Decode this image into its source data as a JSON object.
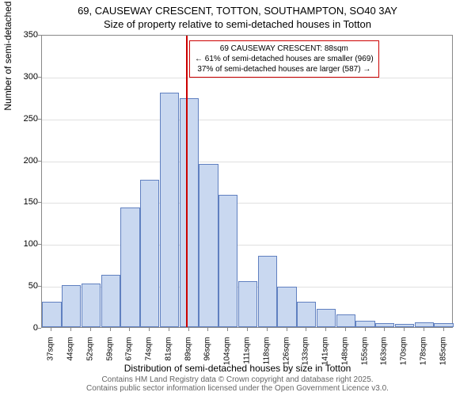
{
  "title_line1": "69, CAUSEWAY CRESCENT, TOTTON, SOUTHAMPTON, SO40 3AY",
  "title_line2": "Size of property relative to semi-detached houses in Totton",
  "y_axis_label": "Number of semi-detached properties",
  "x_axis_label": "Distribution of semi-detached houses by size in Totton",
  "attribution_line1": "Contains HM Land Registry data © Crown copyright and database right 2025.",
  "attribution_line2": "Contains public sector information licensed under the Open Government Licence v3.0.",
  "chart": {
    "type": "histogram",
    "background_color": "#ffffff",
    "grid_color": "#e0e0e0",
    "axis_color": "#888888",
    "bar_fill_color": "#c9d8f0",
    "bar_border_color": "#6080c0",
    "marker_line_color": "#cc0000",
    "callout_border_color": "#cc0000",
    "ylim": [
      0,
      350
    ],
    "y_ticks": [
      0,
      50,
      100,
      150,
      200,
      250,
      300,
      350
    ],
    "x_ticks": [
      "37sqm",
      "44sqm",
      "52sqm",
      "59sqm",
      "67sqm",
      "74sqm",
      "81sqm",
      "89sqm",
      "96sqm",
      "104sqm",
      "111sqm",
      "118sqm",
      "126sqm",
      "133sqm",
      "141sqm",
      "148sqm",
      "155sqm",
      "163sqm",
      "170sqm",
      "178sqm",
      "185sqm"
    ],
    "values": [
      30,
      50,
      52,
      62,
      143,
      176,
      280,
      273,
      195,
      158,
      55,
      85,
      48,
      30,
      22,
      15,
      8,
      5,
      4,
      6,
      5
    ],
    "marker_position": 88,
    "x_range": [
      33.5,
      189
    ],
    "title_fontsize": 13,
    "label_fontsize": 12,
    "tick_fontsize": 11,
    "attribution_fontsize": 10,
    "attribution_color": "#666666"
  },
  "callout": {
    "line1": "69 CAUSEWAY CRESCENT: 88sqm",
    "line2": "← 61% of semi-detached houses are smaller (969)",
    "line3": "37% of semi-detached houses are larger (587) →"
  }
}
